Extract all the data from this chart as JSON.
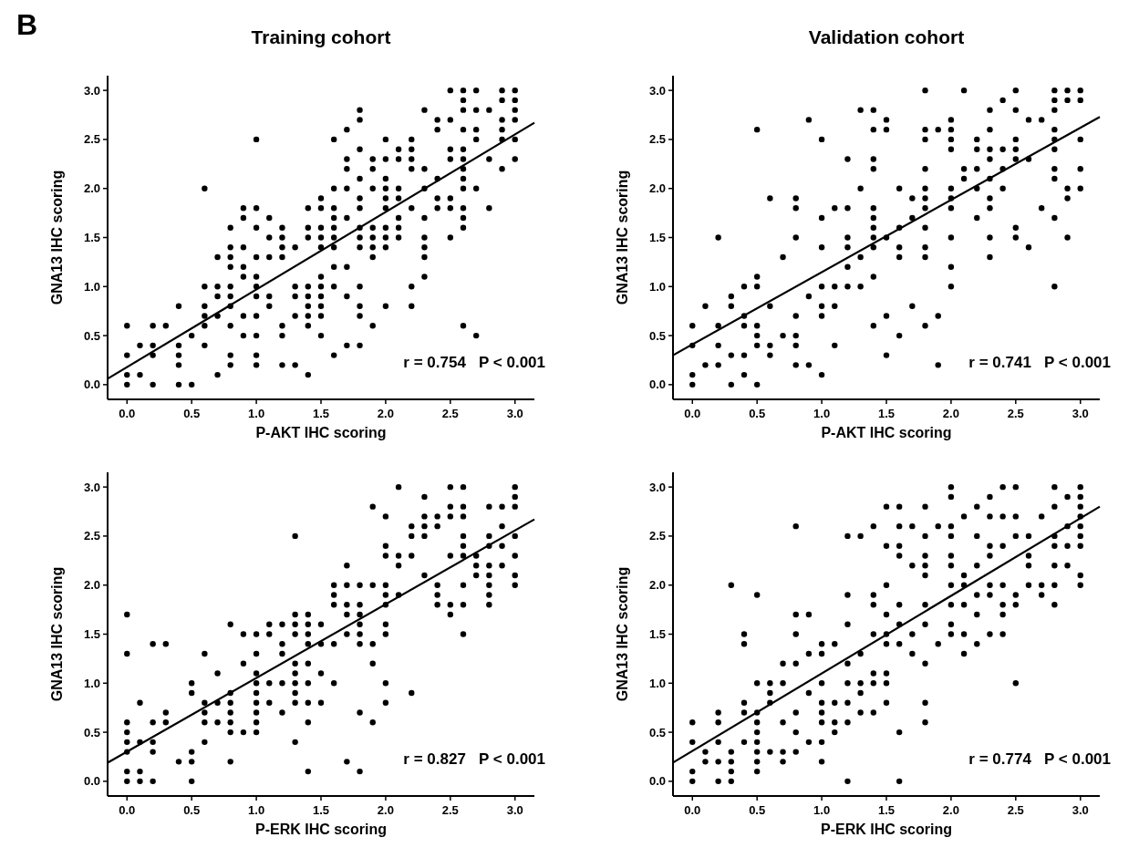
{
  "chart_data": [
    {
      "type": "scatter",
      "title": "Training cohort",
      "xlabel": "P-AKT IHC scoring",
      "ylabel": "GNA13 IHC scoring",
      "annotations": [
        "r = 0.754   P < 0.001",
        "B"
      ],
      "xlim": [
        -0.15,
        3.15
      ],
      "ylim": [
        -0.15,
        3.15
      ],
      "xticks": [
        {
          "value": 0,
          "label": "0.0"
        },
        {
          "value": 0.5,
          "label": "0.5"
        },
        {
          "value": 1,
          "label": "1.0"
        },
        {
          "value": 1.5,
          "label": "1.5"
        },
        {
          "value": 2,
          "label": "2.0"
        },
        {
          "value": 2.5,
          "label": "2.5"
        },
        {
          "value": 3,
          "label": "3.0"
        }
      ],
      "yticks": [
        {
          "value": 0,
          "label": "0.0"
        },
        {
          "value": 0.5,
          "label": "0.5"
        },
        {
          "value": 1,
          "label": "1.0"
        },
        {
          "value": 1.5,
          "label": "1.5"
        },
        {
          "value": 2,
          "label": "2.0"
        },
        {
          "value": 2.5,
          "label": "2.5"
        },
        {
          "value": 3,
          "label": "3.0"
        }
      ],
      "series": [
        {
          "marker": "circle",
          "color": "#000000",
          "x": [
            0,
            0,
            0,
            0,
            0.1,
            0.1,
            0.2,
            0.2,
            0.2,
            0.2,
            0.3,
            0.4,
            0.4,
            0.4,
            0.4,
            0.4,
            0.5,
            0.5,
            0.6,
            0.6,
            0.6,
            0.6,
            0.6,
            0.6,
            0.7,
            0.7,
            0.7,
            0.7,
            0.7,
            0.8,
            0.8,
            0.8,
            0.8,
            0.8,
            0.8,
            0.8,
            0.8,
            0.8,
            0.8,
            0.9,
            0.9,
            0.9,
            0.9,
            0.9,
            0.9,
            0.9,
            1,
            1,
            1,
            1,
            1,
            1,
            1,
            1,
            1,
            1,
            1,
            1.1,
            1.1,
            1.1,
            1.1,
            1.1,
            1.2,
            1.2,
            1.2,
            1.2,
            1.2,
            1.2,
            1.2,
            1.3,
            1.3,
            1.3,
            1.3,
            1.3,
            1.4,
            1.4,
            1.4,
            1.4,
            1.4,
            1.4,
            1.4,
            1.4,
            1.4,
            1.5,
            1.5,
            1.5,
            1.5,
            1.5,
            1.5,
            1.5,
            1.5,
            1.5,
            1.5,
            1.5,
            1.6,
            1.6,
            1.6,
            1.6,
            1.6,
            1.6,
            1.6,
            1.6,
            1.6,
            1.6,
            1.7,
            1.7,
            1.7,
            1.7,
            1.7,
            1.7,
            1.7,
            1.7,
            1.8,
            1.8,
            1.8,
            1.8,
            1.8,
            1.8,
            1.8,
            1.8,
            1.8,
            1.8,
            1.8,
            1.8,
            1.8,
            1.9,
            1.9,
            1.9,
            1.9,
            1.9,
            1.9,
            1.9,
            1.9,
            2,
            2,
            2,
            2,
            2,
            2,
            2,
            2,
            2,
            2,
            2.1,
            2.1,
            2.1,
            2.1,
            2.1,
            2.1,
            2.1,
            2.2,
            2.2,
            2.2,
            2.2,
            2.2,
            2.2,
            2.2,
            2.3,
            2.3,
            2.3,
            2.3,
            2.3,
            2.3,
            2.3,
            2.3,
            2.4,
            2.4,
            2.4,
            2.4,
            2.4,
            2.5,
            2.5,
            2.5,
            2.5,
            2.5,
            2.5,
            2.5,
            2.6,
            2.6,
            2.6,
            2.6,
            2.6,
            2.6,
            2.6,
            2.6,
            2.6,
            2.6,
            2.6,
            2.6,
            2.6,
            2.7,
            2.7,
            2.7,
            2.7,
            2.7,
            2.7,
            2.8,
            2.8,
            2.8,
            2.9,
            2.9,
            2.9,
            2.9,
            2.9,
            2.9,
            3,
            3,
            3,
            3,
            3,
            3
          ],
          "values": [
            0.6,
            0.3,
            0.1,
            0,
            0.4,
            0.1,
            0.6,
            0.4,
            0.3,
            0,
            0.6,
            0.8,
            0.4,
            0.3,
            0.2,
            0,
            0.5,
            0,
            2,
            1,
            0.8,
            0.7,
            0.6,
            0.4,
            1.3,
            1,
            0.9,
            0.7,
            0.1,
            1.6,
            1.4,
            1.3,
            1.2,
            1,
            0.9,
            0.8,
            0.6,
            0.3,
            0.2,
            1.8,
            1.7,
            1.4,
            1.2,
            1.1,
            0.7,
            0.5,
            2.5,
            1.8,
            1.6,
            1.3,
            1.1,
            1,
            0.9,
            0.7,
            0.5,
            0.3,
            0.2,
            1.7,
            1.5,
            1.3,
            0.9,
            0.8,
            1.6,
            1.5,
            1.4,
            1.3,
            0.6,
            0.5,
            0.2,
            1.4,
            1,
            0.9,
            0.7,
            0.2,
            1.8,
            1.6,
            1.5,
            1,
            0.9,
            0.8,
            0.7,
            0.6,
            0.1,
            1.9,
            1.8,
            1.6,
            1.5,
            1.4,
            1.1,
            1,
            0.9,
            0.8,
            0.7,
            0.5,
            2.5,
            2,
            1.8,
            1.7,
            1.6,
            1.5,
            1.4,
            1.2,
            1,
            0.3,
            2.6,
            2.3,
            2.2,
            2,
            1.7,
            1.2,
            0.9,
            0.4,
            2.8,
            2.7,
            2.4,
            2.1,
            1.9,
            1.8,
            1.6,
            1.5,
            1.4,
            1,
            0.8,
            0.7,
            0.4,
            2.3,
            2.2,
            2,
            1.6,
            1.5,
            1.4,
            1.3,
            0.6,
            2.5,
            2.3,
            2.1,
            2,
            1.9,
            1.8,
            1.6,
            1.5,
            1.4,
            0.8,
            2.4,
            2.3,
            2,
            1.9,
            1.7,
            1.6,
            1.5,
            2.5,
            2.4,
            2.3,
            2.2,
            1.8,
            1,
            0.8,
            2.8,
            2.2,
            2,
            1.7,
            1.5,
            1.4,
            1.3,
            1.1,
            2.7,
            2.6,
            2.1,
            1.9,
            1.8,
            3,
            2.7,
            2.4,
            2.3,
            1.9,
            1.8,
            1.5,
            3,
            2.9,
            2.8,
            2.6,
            2.4,
            2.3,
            2.2,
            2.1,
            2,
            1.8,
            1.7,
            1.6,
            0.6,
            3,
            2.8,
            2.6,
            2.5,
            2,
            0.5,
            2.8,
            2.3,
            1.8,
            3,
            2.9,
            2.7,
            2.6,
            2.5,
            2.2,
            3,
            2.9,
            2.8,
            2.7,
            2.5,
            2.3
          ]
        },
        {
          "type": "line",
          "color": "#000000",
          "x": [
            -0.15,
            3.15
          ],
          "values": [
            0.06,
            2.67
          ]
        }
      ]
    },
    {
      "type": "scatter",
      "title": "Validation cohort",
      "xlabel": "P-AKT IHC scoring",
      "ylabel": "GNA13 IHC scoring",
      "annotations": [
        "r = 0.741   P < 0.001"
      ],
      "xlim": [
        -0.15,
        3.15
      ],
      "ylim": [
        -0.15,
        3.15
      ],
      "xticks": [
        {
          "value": 0,
          "label": "0.0"
        },
        {
          "value": 0.5,
          "label": "0.5"
        },
        {
          "value": 1,
          "label": "1.0"
        },
        {
          "value": 1.5,
          "label": "1.5"
        },
        {
          "value": 2,
          "label": "2.0"
        },
        {
          "value": 2.5,
          "label": "2.5"
        },
        {
          "value": 3,
          "label": "3.0"
        }
      ],
      "yticks": [
        {
          "value": 0,
          "label": "0.0"
        },
        {
          "value": 0.5,
          "label": "0.5"
        },
        {
          "value": 1,
          "label": "1.0"
        },
        {
          "value": 1.5,
          "label": "1.5"
        },
        {
          "value": 2,
          "label": "2.0"
        },
        {
          "value": 2.5,
          "label": "2.5"
        },
        {
          "value": 3,
          "label": "3.0"
        }
      ],
      "series": [
        {
          "marker": "circle",
          "color": "#000000",
          "x": [
            0,
            0,
            0,
            0,
            0.1,
            0.1,
            0.2,
            0.2,
            0.2,
            0.2,
            0.3,
            0.3,
            0.3,
            0.3,
            0.4,
            0.4,
            0.4,
            0.4,
            0.4,
            0.5,
            0.5,
            0.5,
            0.5,
            0.5,
            0.5,
            0.5,
            0.6,
            0.6,
            0.6,
            0.6,
            0.7,
            0.7,
            0.8,
            0.8,
            0.8,
            0.8,
            0.8,
            0.8,
            0.8,
            0.9,
            0.9,
            0.9,
            1,
            1,
            1,
            1,
            1,
            1,
            1,
            1.1,
            1.1,
            1.1,
            1.1,
            1.2,
            1.2,
            1.2,
            1.2,
            1.2,
            1.2,
            1.3,
            1.3,
            1.3,
            1.3,
            1.4,
            1.4,
            1.4,
            1.4,
            1.4,
            1.4,
            1.4,
            1.4,
            1.4,
            1.4,
            1.4,
            1.5,
            1.5,
            1.5,
            1.5,
            1.5,
            1.6,
            1.6,
            1.6,
            1.6,
            1.6,
            1.7,
            1.7,
            1.7,
            1.8,
            1.8,
            1.8,
            1.8,
            1.8,
            1.8,
            1.8,
            1.8,
            1.8,
            1.8,
            1.8,
            1.9,
            1.9,
            1.9,
            2,
            2,
            2,
            2,
            2,
            2,
            2,
            2,
            2,
            2,
            2.1,
            2.1,
            2.1,
            2.2,
            2.2,
            2.2,
            2.2,
            2.2,
            2.3,
            2.3,
            2.3,
            2.3,
            2.3,
            2.3,
            2.3,
            2.3,
            2.3,
            2.4,
            2.4,
            2.4,
            2.4,
            2.5,
            2.5,
            2.5,
            2.5,
            2.5,
            2.5,
            2.5,
            2.6,
            2.6,
            2.6,
            2.7,
            2.7,
            2.8,
            2.8,
            2.8,
            2.8,
            2.8,
            2.8,
            2.8,
            2.8,
            2.8,
            2.8,
            2.9,
            2.9,
            2.9,
            2.9,
            2.9,
            3,
            3,
            3,
            3,
            3
          ],
          "values": [
            0.6,
            0.4,
            0.1,
            0,
            0.8,
            0.2,
            1.5,
            0.6,
            0.4,
            0.2,
            0.9,
            0.8,
            0.3,
            0,
            1,
            0.7,
            0.6,
            0.3,
            0.1,
            2.6,
            1.1,
            1,
            0.6,
            0.5,
            0.4,
            0,
            1.9,
            0.8,
            0.4,
            0.3,
            1.3,
            0.5,
            1.9,
            1.8,
            1.5,
            0.7,
            0.5,
            0.4,
            0.2,
            2.7,
            0.9,
            0.2,
            2.5,
            1.7,
            1.4,
            1,
            0.8,
            0.7,
            0.1,
            1.8,
            1,
            0.8,
            0.4,
            2.3,
            1.8,
            1.5,
            1.4,
            1.2,
            1,
            2.8,
            2,
            1.3,
            1,
            2.8,
            2.6,
            2.3,
            2.2,
            1.8,
            1.7,
            1.6,
            1.5,
            1.4,
            1.1,
            0.6,
            2.7,
            2.6,
            1.5,
            0.7,
            0.3,
            2,
            1.6,
            1.4,
            1.3,
            0.5,
            1.9,
            1.7,
            0.8,
            3,
            2.6,
            2.5,
            2.2,
            2,
            1.9,
            1.8,
            1.6,
            1.4,
            1.3,
            0.6,
            2.6,
            0.7,
            0.2,
            2.7,
            2.6,
            2.5,
            2.4,
            2,
            1.9,
            1.8,
            1.5,
            1.2,
            1,
            3,
            2.2,
            2.1,
            2.5,
            2.4,
            2.2,
            2,
            1.7,
            2.8,
            2.6,
            2.4,
            2.3,
            2.1,
            1.9,
            1.8,
            1.5,
            1.3,
            2.9,
            2.4,
            2.2,
            2,
            3,
            2.8,
            2.5,
            2.4,
            2.3,
            1.6,
            1.5,
            2.7,
            2.3,
            1.4,
            2.7,
            1.8,
            3,
            2.9,
            2.8,
            2.6,
            2.5,
            2.4,
            2.2,
            2.1,
            1.7,
            1,
            3,
            2.9,
            2,
            1.9,
            1.5,
            3,
            2.9,
            2.5,
            2.2,
            2
          ]
        },
        {
          "type": "line",
          "color": "#000000",
          "x": [
            -0.15,
            3.15
          ],
          "values": [
            0.3,
            2.73
          ]
        }
      ]
    },
    {
      "type": "scatter",
      "xlabel": "P-ERK IHC scoring",
      "ylabel": "GNA13 IHC scoring",
      "annotations": [
        "r = 0.827   P < 0.001"
      ],
      "xlim": [
        -0.15,
        3.15
      ],
      "ylim": [
        -0.15,
        3.15
      ],
      "xticks": [
        {
          "value": 0,
          "label": "0.0"
        },
        {
          "value": 0.5,
          "label": "0.5"
        },
        {
          "value": 1,
          "label": "1.0"
        },
        {
          "value": 1.5,
          "label": "1.5"
        },
        {
          "value": 2,
          "label": "2.0"
        },
        {
          "value": 2.5,
          "label": "2.5"
        },
        {
          "value": 3,
          "label": "3.0"
        }
      ],
      "yticks": [
        {
          "value": 0,
          "label": "0.0"
        },
        {
          "value": 0.5,
          "label": "0.5"
        },
        {
          "value": 1,
          "label": "1.0"
        },
        {
          "value": 1.5,
          "label": "1.5"
        },
        {
          "value": 2,
          "label": "2.0"
        },
        {
          "value": 2.5,
          "label": "2.5"
        },
        {
          "value": 3,
          "label": "3.0"
        }
      ],
      "series": [
        {
          "marker": "circle",
          "color": "#000000",
          "x": [
            0,
            0,
            0,
            0,
            0,
            0,
            0,
            0,
            0.1,
            0.1,
            0.1,
            0.1,
            0.2,
            0.2,
            0.2,
            0.2,
            0.2,
            0.3,
            0.3,
            0.3,
            0.4,
            0.5,
            0.5,
            0.5,
            0.5,
            0.5,
            0.6,
            0.6,
            0.6,
            0.6,
            0.6,
            0.7,
            0.7,
            0.7,
            0.8,
            0.8,
            0.8,
            0.8,
            0.8,
            0.8,
            0.8,
            0.9,
            0.9,
            0.9,
            1,
            1,
            1,
            1,
            1,
            1,
            1,
            1,
            1,
            1.1,
            1.1,
            1.1,
            1.1,
            1.2,
            1.2,
            1.2,
            1.2,
            1.2,
            1.3,
            1.3,
            1.3,
            1.3,
            1.3,
            1.3,
            1.3,
            1.3,
            1.3,
            1.3,
            1.4,
            1.4,
            1.4,
            1.4,
            1.4,
            1.4,
            1.4,
            1.4,
            1.4,
            1.5,
            1.5,
            1.5,
            1.5,
            1.6,
            1.6,
            1.6,
            1.6,
            1.6,
            1.7,
            1.7,
            1.7,
            1.7,
            1.7,
            1.7,
            1.8,
            1.8,
            1.8,
            1.8,
            1.8,
            1.8,
            1.8,
            1.8,
            1.9,
            1.9,
            1.9,
            1.9,
            1.9,
            2,
            2,
            2,
            2,
            2,
            2,
            2,
            2,
            2,
            2,
            2.1,
            2.1,
            2.1,
            2.1,
            2.2,
            2.2,
            2.2,
            2.2,
            2.3,
            2.3,
            2.3,
            2.3,
            2.3,
            2.4,
            2.4,
            2.4,
            2.4,
            2.4,
            2.5,
            2.5,
            2.5,
            2.5,
            2.5,
            2.5,
            2.6,
            2.6,
            2.6,
            2.6,
            2.6,
            2.6,
            2.6,
            2.6,
            2.6,
            2.7,
            2.7,
            2.7,
            2.8,
            2.8,
            2.8,
            2.8,
            2.8,
            2.8,
            2.8,
            2.8,
            2.9,
            2.9,
            2.9,
            2.9,
            3,
            3,
            3,
            3,
            3,
            3,
            3
          ],
          "values": [
            1.7,
            1.3,
            0.6,
            0.5,
            0.4,
            0.3,
            0.1,
            0,
            0.8,
            0.4,
            0.1,
            0,
            1.4,
            0.6,
            0.4,
            0.3,
            0,
            1.4,
            0.7,
            0.6,
            0.2,
            1,
            0.9,
            0.3,
            0.2,
            0,
            1.3,
            0.8,
            0.7,
            0.6,
            0.4,
            1.1,
            0.8,
            0.6,
            1.6,
            0.9,
            0.8,
            0.7,
            0.6,
            0.5,
            0.2,
            1.5,
            1.2,
            0.5,
            1.5,
            1.3,
            1.1,
            1,
            0.9,
            0.8,
            0.7,
            0.6,
            0.5,
            1.6,
            1.5,
            1,
            0.8,
            1.6,
            1.4,
            1.3,
            1,
            0.7,
            2.5,
            1.7,
            1.6,
            1.5,
            1.2,
            1.1,
            1,
            0.9,
            0.8,
            0.4,
            1.7,
            1.6,
            1.5,
            1.4,
            1.2,
            1,
            0.8,
            0.6,
            0.1,
            1.6,
            1.4,
            1.1,
            0.8,
            2,
            1.9,
            1.8,
            1.4,
            1,
            2.2,
            2,
            1.8,
            1.7,
            1.5,
            0.2,
            2,
            1.8,
            1.7,
            1.6,
            1.5,
            1.4,
            0.7,
            0.1,
            2.8,
            2,
            1.4,
            1.2,
            0.6,
            2.7,
            2.4,
            2.3,
            2,
            1.9,
            1.8,
            1.6,
            1.5,
            1,
            0.8,
            3,
            2.3,
            2.2,
            1.9,
            2.6,
            2.5,
            2.3,
            0.9,
            2.9,
            2.7,
            2.6,
            2.5,
            2.1,
            2.7,
            2.6,
            2,
            1.9,
            1.8,
            3,
            2.8,
            2.7,
            2.3,
            1.8,
            1.7,
            3,
            2.8,
            2.7,
            2.5,
            2.4,
            2.3,
            2,
            1.8,
            1.5,
            2.3,
            2.2,
            2.1,
            2.8,
            2.5,
            2.4,
            2.2,
            2.1,
            2,
            1.9,
            1.8,
            2.8,
            2.6,
            2.4,
            2.2,
            3,
            2.9,
            2.8,
            2.5,
            2.3,
            2.1,
            2
          ]
        },
        {
          "type": "line",
          "color": "#000000",
          "x": [
            -0.15,
            3.15
          ],
          "values": [
            0.19,
            2.67
          ]
        }
      ]
    },
    {
      "type": "scatter",
      "xlabel": "P-ERK IHC scoring",
      "ylabel": "GNA13 IHC scoring",
      "annotations": [
        "r = 0.774   P < 0.001"
      ],
      "xlim": [
        -0.15,
        3.15
      ],
      "ylim": [
        -0.15,
        3.15
      ],
      "xticks": [
        {
          "value": 0,
          "label": "0.0"
        },
        {
          "value": 0.5,
          "label": "0.5"
        },
        {
          "value": 1,
          "label": "1.0"
        },
        {
          "value": 1.5,
          "label": "1.5"
        },
        {
          "value": 2,
          "label": "2.0"
        },
        {
          "value": 2.5,
          "label": "2.5"
        },
        {
          "value": 3,
          "label": "3.0"
        }
      ],
      "yticks": [
        {
          "value": 0,
          "label": "0.0"
        },
        {
          "value": 0.5,
          "label": "0.5"
        },
        {
          "value": 1,
          "label": "1.0"
        },
        {
          "value": 1.5,
          "label": "1.5"
        },
        {
          "value": 2,
          "label": "2.0"
        },
        {
          "value": 2.5,
          "label": "2.5"
        },
        {
          "value": 3,
          "label": "3.0"
        }
      ],
      "series": [
        {
          "marker": "circle",
          "color": "#000000",
          "x": [
            0,
            0,
            0,
            0,
            0.1,
            0.1,
            0.2,
            0.2,
            0.2,
            0.2,
            0.2,
            0.3,
            0.3,
            0.3,
            0.3,
            0.3,
            0.4,
            0.4,
            0.4,
            0.4,
            0.4,
            0.5,
            0.5,
            0.5,
            0.5,
            0.5,
            0.5,
            0.5,
            0.5,
            0.5,
            0.6,
            0.6,
            0.6,
            0.6,
            0.7,
            0.7,
            0.7,
            0.7,
            0.7,
            0.8,
            0.8,
            0.8,
            0.8,
            0.8,
            0.8,
            0.8,
            0.9,
            0.9,
            0.9,
            0.9,
            1,
            1,
            1,
            1,
            1,
            1,
            1,
            1,
            1.1,
            1.1,
            1.1,
            1.1,
            1.2,
            1.2,
            1.2,
            1.2,
            1.2,
            1.2,
            1.2,
            1.2,
            1.3,
            1.3,
            1.3,
            1.3,
            1.3,
            1.4,
            1.4,
            1.4,
            1.4,
            1.4,
            1.4,
            1.4,
            1.5,
            1.5,
            1.5,
            1.5,
            1.5,
            1.5,
            1.5,
            1.5,
            1.5,
            1.6,
            1.6,
            1.6,
            1.6,
            1.6,
            1.6,
            1.6,
            1.6,
            1.6,
            1.7,
            1.7,
            1.7,
            1.7,
            1.8,
            1.8,
            1.8,
            1.8,
            1.8,
            1.8,
            1.8,
            1.8,
            1.8,
            1.8,
            1.9,
            1.9,
            2,
            2,
            2,
            2,
            2,
            2,
            2,
            2,
            2,
            2,
            2.1,
            2.1,
            2.1,
            2.1,
            2.1,
            2.1,
            2.2,
            2.2,
            2.2,
            2.2,
            2.2,
            2.2,
            2.3,
            2.3,
            2.3,
            2.3,
            2.3,
            2.3,
            2.3,
            2.4,
            2.4,
            2.4,
            2.4,
            2.4,
            2.4,
            2.4,
            2.5,
            2.5,
            2.5,
            2.5,
            2.5,
            2.5,
            2.6,
            2.6,
            2.6,
            2.6,
            2.7,
            2.7,
            2.7,
            2.8,
            2.8,
            2.8,
            2.8,
            2.8,
            2.8,
            2.8,
            2.9,
            2.9,
            2.9,
            2.9,
            3,
            3,
            3,
            3,
            3,
            3,
            3,
            3,
            3
          ],
          "values": [
            0.6,
            0.4,
            0.1,
            0,
            0.3,
            0.2,
            0.7,
            0.6,
            0.4,
            0.2,
            0,
            2,
            0.3,
            0.2,
            0.1,
            0,
            1.5,
            1.4,
            0.8,
            0.7,
            0.4,
            1.9,
            1,
            0.7,
            0.6,
            0.5,
            0.4,
            0.3,
            0.2,
            0.1,
            1,
            0.9,
            0.8,
            0.3,
            1.2,
            1,
            0.6,
            0.3,
            0.2,
            2.6,
            1.7,
            1.5,
            1.2,
            0.7,
            0.5,
            0.3,
            1.7,
            1.3,
            0.9,
            0.4,
            1.4,
            1.3,
            1,
            0.8,
            0.7,
            0.6,
            0.4,
            0.2,
            1.4,
            0.8,
            0.6,
            0.5,
            2.5,
            1.9,
            1.6,
            1.2,
            1,
            0.8,
            0.6,
            0,
            2.5,
            1.3,
            1,
            0.9,
            0.7,
            2.6,
            1.9,
            1.8,
            1.5,
            1.1,
            1,
            0.7,
            2.8,
            2.4,
            2,
            1.7,
            1.5,
            1.4,
            1.1,
            1,
            0.8,
            2.8,
            2.6,
            2.4,
            2.3,
            1.8,
            1.6,
            1.4,
            0.5,
            0,
            2.6,
            2.2,
            1.5,
            1.3,
            2.8,
            2.5,
            2.3,
            2.2,
            2.1,
            1.8,
            1.6,
            1.2,
            0.8,
            0.6,
            2.6,
            1.4,
            3,
            2.9,
            2.6,
            2.5,
            2.3,
            2.2,
            2,
            1.8,
            1.6,
            1.5,
            2.7,
            2.1,
            2,
            1.8,
            1.5,
            1.3,
            2.8,
            2.5,
            2.2,
            1.9,
            1.7,
            1.4,
            2.9,
            2.7,
            2.4,
            2.3,
            2,
            1.9,
            1.5,
            3,
            2.7,
            2.4,
            2,
            1.8,
            1.7,
            1.5,
            3,
            2.7,
            2.5,
            1.9,
            1.8,
            1,
            2.5,
            2.3,
            2.2,
            2,
            2.7,
            2,
            1.9,
            3,
            2.8,
            2.5,
            2.4,
            2.2,
            2,
            1.8,
            2.9,
            2.6,
            2.4,
            2.2,
            3,
            2.9,
            2.8,
            2.7,
            2.6,
            2.5,
            2.4,
            2.1,
            2
          ]
        },
        {
          "type": "line",
          "color": "#000000",
          "x": [
            -0.15,
            3.15
          ],
          "values": [
            0.19,
            2.8
          ]
        }
      ]
    }
  ]
}
